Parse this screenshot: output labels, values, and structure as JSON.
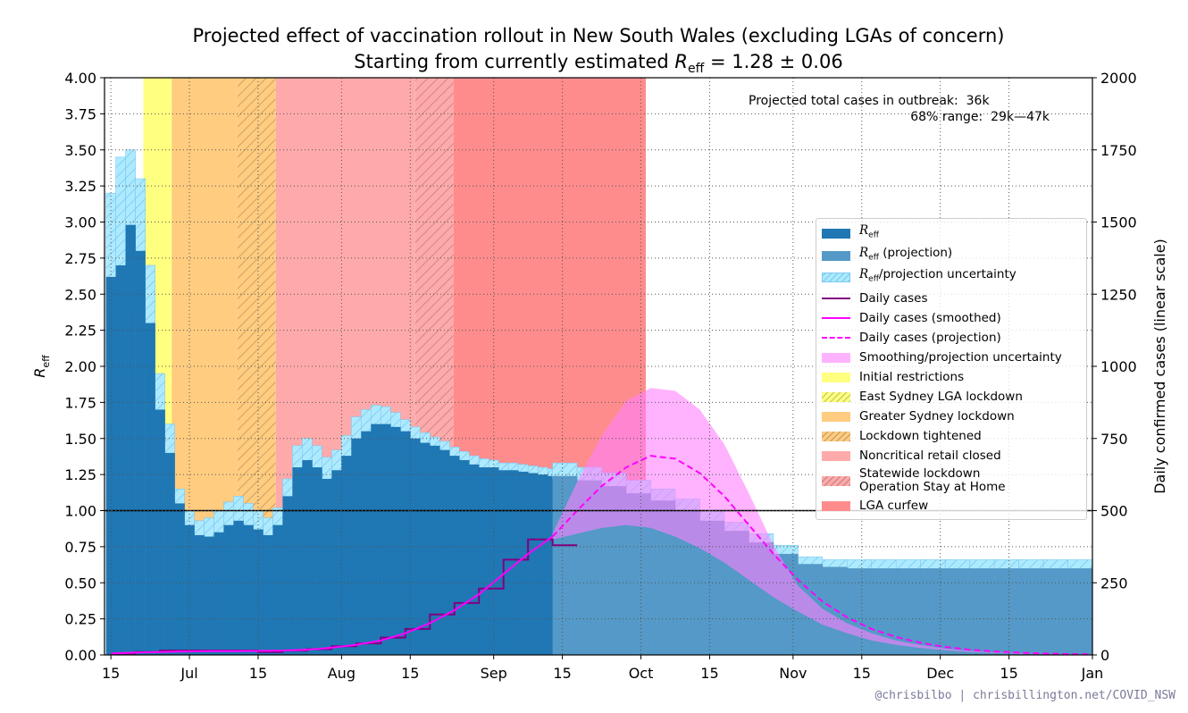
{
  "chart_data": {
    "type": "combo",
    "title": "Projected effect of vaccination rollout in New South Wales (excluding LGAs of concern)",
    "subtitle": {
      "text": "Starting from currently estimated ",
      "symbol": "R",
      "subscript": "eff",
      "rest": " = 1.28 ± 0.06"
    },
    "ylabel": {
      "symbol": "R",
      "subscript": "eff"
    },
    "y2label": "Daily confirmed cases (linear scale)",
    "annotation": [
      "Projected total cases in outbreak:  36k",
      "68% range:  29k—47k"
    ],
    "credit": "@chrisbilbo | chrisbillington.net/COVID_NSW",
    "grid": true,
    "reference_line": {
      "value": 1,
      "color": "#000000"
    },
    "xlim": [
      -1.3,
      200
    ],
    "xticks": [
      {
        "value": 0,
        "label": "15"
      },
      {
        "value": 16,
        "label": "Jul"
      },
      {
        "value": 30,
        "label": "15"
      },
      {
        "value": 47,
        "label": "Aug"
      },
      {
        "value": 61,
        "label": "15"
      },
      {
        "value": 78,
        "label": "Sep"
      },
      {
        "value": 92,
        "label": "15"
      },
      {
        "value": 108,
        "label": "Oct"
      },
      {
        "value": 122,
        "label": "15"
      },
      {
        "value": 139,
        "label": "Nov"
      },
      {
        "value": 153,
        "label": "15"
      },
      {
        "value": 169,
        "label": "Dec"
      },
      {
        "value": 183,
        "label": "15"
      },
      {
        "value": 200,
        "label": "Jan"
      }
    ],
    "ylim": [
      0,
      4
    ],
    "yticks": [
      {
        "value": 0,
        "label": "0.00"
      },
      {
        "value": 0.25,
        "label": "0.25"
      },
      {
        "value": 0.5,
        "label": "0.50"
      },
      {
        "value": 0.75,
        "label": "0.75"
      },
      {
        "value": 1,
        "label": "1.00"
      },
      {
        "value": 1.25,
        "label": "1.25"
      },
      {
        "value": 1.5,
        "label": "1.50"
      },
      {
        "value": 1.75,
        "label": "1.75"
      },
      {
        "value": 2,
        "label": "2.00"
      },
      {
        "value": 2.25,
        "label": "2.25"
      },
      {
        "value": 2.5,
        "label": "2.50"
      },
      {
        "value": 2.75,
        "label": "2.75"
      },
      {
        "value": 3,
        "label": "3.00"
      },
      {
        "value": 3.25,
        "label": "3.25"
      },
      {
        "value": 3.5,
        "label": "3.50"
      },
      {
        "value": 3.75,
        "label": "3.75"
      },
      {
        "value": 4,
        "label": "4.00"
      }
    ],
    "y2lim": [
      0,
      2000
    ],
    "y2ticks": [
      0,
      250,
      500,
      750,
      1000,
      1250,
      1500,
      1750,
      2000
    ],
    "series": [
      {
        "name": "R",
        "name_sub": "eff",
        "name_rest": "",
        "color": "#1f77b4",
        "style": "bar",
        "x": [
          -1,
          1,
          3,
          5,
          7,
          9,
          11,
          13,
          15,
          17,
          19,
          21,
          23,
          25,
          27,
          29,
          31,
          33,
          35,
          37,
          39,
          41,
          43,
          45,
          47,
          49,
          51,
          53,
          55,
          57,
          59,
          61,
          63,
          65,
          67,
          69,
          71,
          73,
          75,
          77,
          79,
          81,
          83,
          85,
          87,
          89
        ],
        "values": [
          2.62,
          2.7,
          2.98,
          2.8,
          2.3,
          1.7,
          1.4,
          1.05,
          0.9,
          0.83,
          0.82,
          0.85,
          0.9,
          0.93,
          0.9,
          0.87,
          0.83,
          0.9,
          1.1,
          1.3,
          1.35,
          1.3,
          1.22,
          1.28,
          1.38,
          1.5,
          1.55,
          1.6,
          1.6,
          1.58,
          1.55,
          1.5,
          1.47,
          1.45,
          1.42,
          1.38,
          1.35,
          1.32,
          1.3,
          1.3,
          1.28,
          1.28,
          1.27,
          1.26,
          1.25,
          1.24
        ],
        "lower": [
          2.0,
          2.3,
          2.5,
          2.4,
          2.0,
          1.5,
          1.2,
          0.95,
          0.83,
          0.78,
          0.78,
          0.81,
          0.86,
          0.89,
          0.86,
          0.83,
          0.8,
          0.86,
          1.04,
          1.22,
          1.28,
          1.23,
          1.17,
          1.23,
          1.33,
          1.45,
          1.5,
          1.55,
          1.56,
          1.54,
          1.51,
          1.47,
          1.44,
          1.42,
          1.39,
          1.35,
          1.32,
          1.3,
          1.28,
          1.28,
          1.26,
          1.26,
          1.25,
          1.24,
          1.23,
          1.22
        ],
        "upper": [
          3.2,
          3.45,
          3.5,
          3.3,
          2.7,
          1.95,
          1.6,
          1.15,
          1.0,
          0.93,
          0.95,
          1.0,
          1.06,
          1.1,
          1.05,
          1.0,
          0.95,
          1.02,
          1.22,
          1.45,
          1.5,
          1.45,
          1.37,
          1.42,
          1.52,
          1.65,
          1.7,
          1.73,
          1.72,
          1.68,
          1.63,
          1.58,
          1.54,
          1.51,
          1.48,
          1.44,
          1.41,
          1.38,
          1.36,
          1.35,
          1.33,
          1.33,
          1.32,
          1.31,
          1.3,
          1.29
        ]
      },
      {
        "name": "R",
        "name_sub": "eff",
        "name_rest": " (projection)",
        "color": "#5499c7",
        "style": "bar",
        "x": [
          90,
          95,
          100,
          105,
          110,
          115,
          120,
          125,
          130,
          135,
          140,
          145,
          150,
          155,
          160,
          165,
          170,
          175,
          180,
          185,
          190,
          195,
          200
        ],
        "values": [
          1.24,
          1.21,
          1.17,
          1.12,
          1.07,
          1.0,
          0.93,
          0.86,
          0.78,
          0.7,
          0.63,
          0.61,
          0.6,
          0.6,
          0.6,
          0.6,
          0.6,
          0.6,
          0.6,
          0.6,
          0.6,
          0.6,
          0.6
        ],
        "lower": [
          1.22,
          1.19,
          1.15,
          1.1,
          1.05,
          0.98,
          0.91,
          0.84,
          0.76,
          0.68,
          0.61,
          0.59,
          0.58,
          0.58,
          0.58,
          0.58,
          0.58,
          0.58,
          0.58,
          0.58,
          0.58,
          0.58,
          0.58
        ],
        "upper": [
          1.33,
          1.3,
          1.26,
          1.21,
          1.15,
          1.08,
          1.0,
          0.92,
          0.84,
          0.76,
          0.68,
          0.66,
          0.66,
          0.66,
          0.66,
          0.66,
          0.66,
          0.66,
          0.66,
          0.66,
          0.66,
          0.66,
          0.66
        ]
      },
      {
        "name": "Daily cases",
        "color": "#800080",
        "style": "line",
        "step": true,
        "axis": "y2",
        "x": [
          0,
          5,
          10,
          15,
          20,
          25,
          30,
          35,
          40,
          45,
          50,
          55,
          60,
          65,
          70,
          75,
          80,
          85,
          90
        ],
        "values": [
          5,
          10,
          15,
          15,
          15,
          15,
          10,
          15,
          20,
          30,
          40,
          60,
          90,
          140,
          180,
          230,
          330,
          400,
          380
        ]
      },
      {
        "name": "Daily cases (smoothed)",
        "color": "#ff00ff",
        "style": "line",
        "axis": "y2",
        "x": [
          0,
          5,
          10,
          15,
          20,
          25,
          30,
          35,
          40,
          45,
          50,
          55,
          60,
          65,
          70,
          75,
          80,
          85,
          90
        ],
        "values": [
          5,
          8,
          10,
          12,
          13,
          13,
          14,
          15,
          18,
          25,
          35,
          50,
          75,
          110,
          155,
          210,
          280,
          350,
          410
        ]
      },
      {
        "name": "Daily cases (projection)",
        "color": "#ff00ff",
        "style": "line",
        "dashed": true,
        "axis": "y2",
        "x": [
          90,
          95,
          100,
          105,
          110,
          115,
          120,
          125,
          130,
          135,
          140,
          145,
          150,
          155,
          160,
          165,
          170,
          175,
          180,
          185,
          190,
          195,
          200
        ],
        "values": [
          410,
          500,
          585,
          650,
          690,
          680,
          630,
          550,
          450,
          350,
          260,
          185,
          130,
          90,
          62,
          42,
          28,
          18,
          12,
          8,
          5,
          3,
          2
        ]
      }
    ],
    "bands": [
      {
        "name": "R",
        "name_sub": "eff",
        "name_rest": "/projection uncertainty",
        "color": "#aeeaff",
        "hatch": true
      },
      {
        "name": "Smoothing/projection uncertainty",
        "color": "#ff80ff",
        "axis": "y2",
        "x": [
          90,
          95,
          100,
          105,
          110,
          115,
          120,
          125,
          130,
          135,
          140,
          145,
          150,
          155,
          160,
          165,
          170,
          175,
          180,
          185,
          190,
          195,
          200
        ],
        "lower": [
          400,
          420,
          440,
          450,
          440,
          410,
          370,
          320,
          260,
          200,
          150,
          105,
          75,
          50,
          35,
          24,
          16,
          10,
          7,
          4,
          3,
          2,
          1
        ],
        "upper": [
          420,
          600,
          760,
          880,
          925,
          915,
          850,
          730,
          560,
          380,
          240,
          160,
          110,
          75,
          50,
          34,
          22,
          14,
          9,
          6,
          4,
          3,
          2
        ]
      }
    ],
    "regions": [
      {
        "name": "Initial restrictions",
        "color": "#ffff80",
        "hatch": false,
        "x": [
          6.6,
          12.4
        ]
      },
      {
        "name": "East Sydney LGA lockdown",
        "color": "#ffff80",
        "hatch": true
      },
      {
        "name": "Greater Sydney lockdown",
        "color": "#ffcc80",
        "hatch": false,
        "x": [
          12.4,
          25.8
        ]
      },
      {
        "name": "Lockdown tightened",
        "color": "#ffcc80",
        "hatch": true,
        "x": [
          25.8,
          33.6
        ]
      },
      {
        "name": "Noncritical retail closed",
        "color": "#ffaaaa",
        "hatch": false,
        "x": [
          33.6,
          62
        ]
      },
      {
        "name": "Statewide lockdown\nOperation Stay at Home",
        "color": "#ffaaaa",
        "hatch": true,
        "x": [
          62,
          69.8
        ]
      },
      {
        "name": "LGA curfew",
        "color": "#ff8c8c",
        "hatch": false,
        "x": [
          69.8,
          109
        ]
      }
    ]
  }
}
